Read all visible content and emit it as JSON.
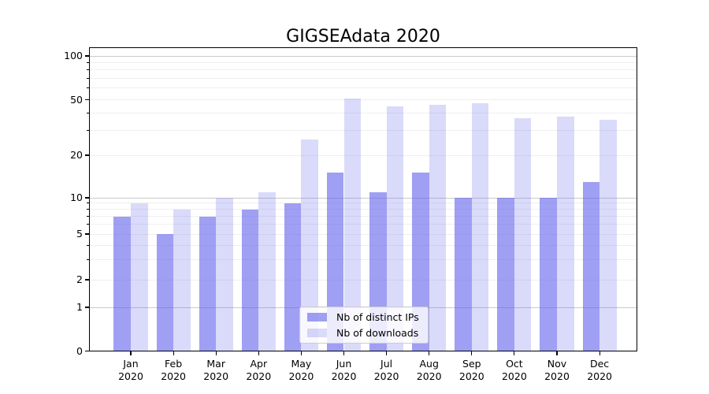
{
  "chart_data": {
    "type": "bar",
    "title": "GIGSEAdata 2020",
    "categories": [
      "Jan",
      "Feb",
      "Mar",
      "Apr",
      "May",
      "Jun",
      "Jul",
      "Aug",
      "Sep",
      "Oct",
      "Nov",
      "Dec"
    ],
    "year_label": "2020",
    "series": [
      {
        "name": "Nb of distinct IPs",
        "values": [
          7,
          5,
          7,
          8,
          9,
          15,
          11,
          15,
          10,
          10,
          10,
          13
        ],
        "color": "rgba(100,100,235,0.62)"
      },
      {
        "name": "Nb of downloads",
        "values": [
          9,
          8,
          10,
          11,
          26,
          51,
          45,
          46,
          47,
          37,
          38,
          36
        ],
        "color": "rgba(100,100,235,0.24)"
      }
    ],
    "yscale": "log (symlog-like, linear below 1)",
    "ylim": [
      0,
      100
    ],
    "y_labeled_ticks": [
      100,
      50,
      20,
      10,
      5,
      2,
      1,
      0
    ],
    "y_major_gridlines": [
      1,
      10,
      100
    ],
    "y_minor_gridlines": [
      2,
      3,
      4,
      5,
      6,
      7,
      8,
      9,
      20,
      30,
      40,
      50,
      60,
      70,
      80,
      90
    ],
    "grid": true,
    "legend_position": "lower center",
    "colors": {
      "major_grid": "#c9c9c9",
      "minor_grid": "#efefef",
      "spine": "#000000",
      "text": "#000000",
      "background": "#ffffff"
    }
  }
}
